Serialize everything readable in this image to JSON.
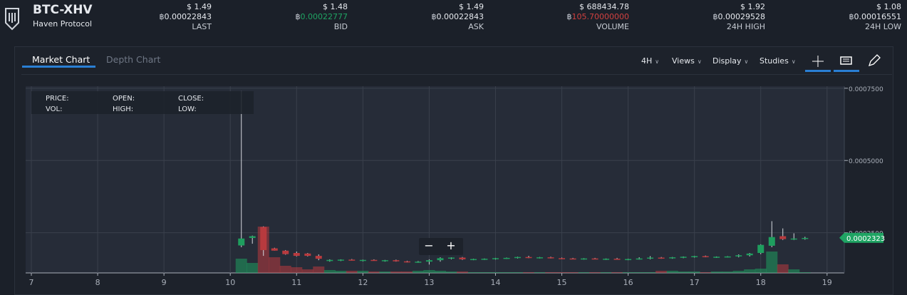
{
  "header": {
    "pair": "BTC-XHV",
    "name": "Haven Protocol",
    "currency_symbol": "฿",
    "stats": [
      {
        "usd": "$ 1.49",
        "btc": "0.00022843",
        "label": "LAST"
      },
      {
        "usd": "$ 1.48",
        "btc": "0.00022777",
        "label": "BID",
        "color": "#1fa463"
      },
      {
        "usd": "$ 1.49",
        "btc": "0.00022843",
        "label": "ASK"
      },
      {
        "usd": "$ 688434.78",
        "btc": "105.70000000",
        "label": "VOLUME",
        "color": "#d0403f"
      },
      {
        "usd": "$ 1.92",
        "btc": "0.00029528",
        "label": "24H HIGH"
      },
      {
        "usd": "$ 1.08",
        "btc": "0.00016551",
        "label": "24H LOW"
      }
    ]
  },
  "toolbar": {
    "tabs": [
      "Market Chart",
      "Depth Chart"
    ],
    "menus": [
      "4H",
      "Views",
      "Display",
      "Studies"
    ]
  },
  "info_box": {
    "labels": [
      "PRICE:",
      "OPEN:",
      "CLOSE:",
      "VOL:",
      "HIGH:",
      "LOW:"
    ]
  },
  "zoom": [
    "−",
    "+"
  ],
  "chart_data": {
    "type": "candlestick",
    "up_color": "#1e9e5e",
    "down_color": "#b83a3e",
    "grid": true,
    "x": [
      10.167,
      10.333,
      10.5,
      10.667,
      10.833,
      11,
      11.167,
      11.333,
      11.5,
      11.667,
      11.833,
      12,
      12.167,
      12.333,
      12.5,
      12.667,
      12.833,
      13,
      13.167,
      13.333,
      13.5,
      13.667,
      13.833,
      14,
      14.167,
      14.333,
      14.5,
      14.667,
      14.833,
      15,
      15.167,
      15.333,
      15.5,
      15.667,
      15.833,
      16,
      16.167,
      16.333,
      16.5,
      16.667,
      16.833,
      17,
      17.167,
      17.333,
      17.5,
      17.667,
      17.833,
      18,
      18.167,
      18.333,
      18.5,
      18.667
    ],
    "open": [
      0.000206,
      0.000232,
      0.00027,
      0.000196,
      0.000188,
      0.00018,
      0.000178,
      0.00017,
      0.000152,
      0.000155,
      0.000157,
      0.000154,
      0.000156,
      0.000154,
      0.000155,
      0.000151,
      0.000149,
      0.00015,
      0.000155,
      0.000162,
      0.000164,
      0.000158,
      0.000159,
      0.00016,
      0.000162,
      0.000163,
      0.000166,
      0.000164,
      0.000165,
      0.000162,
      0.000161,
      0.00016,
      0.000161,
      0.000159,
      0.00016,
      0.000158,
      0.000159,
      0.000161,
      0.000164,
      0.000163,
      0.000165,
      0.000167,
      0.000169,
      0.000166,
      0.000167,
      0.000168,
      0.000172,
      0.00018,
      0.000205,
      0.000238,
      0.000229,
      0.00023
    ],
    "high": [
      0.00074,
      0.00024,
      0.000272,
      0.000198,
      0.00019,
      0.000185,
      0.00018,
      0.000175,
      0.000158,
      0.000158,
      0.000159,
      0.000157,
      0.000158,
      0.000156,
      0.000157,
      0.000153,
      0.000152,
      0.000158,
      0.000165,
      0.000165,
      0.000166,
      0.00016,
      0.000161,
      0.000163,
      0.000164,
      0.000167,
      0.00017,
      0.000166,
      0.000167,
      0.000164,
      0.000163,
      0.000162,
      0.000163,
      0.000161,
      0.000163,
      0.00016,
      0.000165,
      0.000169,
      0.000166,
      0.000166,
      0.000168,
      0.00017,
      0.000171,
      0.000168,
      0.000169,
      0.000175,
      0.00018,
      0.00021,
      0.00029,
      0.000265,
      0.000248,
      0.000236
    ],
    "low": [
      0.0002,
      0.000212,
      0.00017,
      0.000188,
      0.000174,
      0.000168,
      0.000168,
      0.000155,
      0.00015,
      0.000152,
      0.000154,
      0.000151,
      0.000153,
      0.00015,
      0.00015,
      0.000147,
      0.000146,
      0.00014,
      0.00015,
      0.000158,
      0.000156,
      0.000155,
      0.000156,
      0.000157,
      0.000159,
      0.000161,
      0.000162,
      0.000161,
      0.000161,
      0.000159,
      0.000158,
      0.000157,
      0.000158,
      0.000156,
      0.000157,
      0.000155,
      0.000157,
      0.000158,
      0.00016,
      0.00016,
      0.000162,
      0.000164,
      0.000165,
      0.000163,
      0.000164,
      0.000165,
      0.000168,
      0.000176,
      0.0002,
      0.000225,
      0.000225,
      0.000226
    ],
    "close": [
      0.00023,
      0.000238,
      0.00019,
      0.000188,
      0.000176,
      0.00017,
      0.00017,
      0.00016,
      0.000156,
      0.000157,
      0.000155,
      0.000156,
      0.000154,
      0.000155,
      0.000151,
      0.000149,
      0.00015,
      0.000155,
      0.000162,
      0.000164,
      0.000158,
      0.000159,
      0.00016,
      0.000162,
      0.000163,
      0.000166,
      0.000164,
      0.000165,
      0.000162,
      0.000161,
      0.00016,
      0.000161,
      0.000159,
      0.00016,
      0.000158,
      0.000159,
      0.000161,
      0.000164,
      0.000163,
      0.000165,
      0.000167,
      0.000169,
      0.000166,
      0.000167,
      0.000168,
      0.000172,
      0.000178,
      0.000208,
      0.000235,
      0.000228,
      0.00023,
      0.000232
    ],
    "volume": [
      20,
      14,
      65,
      22,
      10,
      8,
      5,
      9,
      4,
      3,
      3,
      3,
      2,
      2,
      2,
      2,
      3,
      4,
      3,
      2,
      2,
      1,
      1,
      1,
      1,
      1,
      1,
      1,
      1,
      1,
      1,
      1,
      1,
      1,
      1,
      1,
      1,
      1,
      3,
      3,
      2,
      2,
      1,
      2,
      2,
      3,
      5,
      6,
      30,
      12,
      5,
      1
    ],
    "xlim": [
      6.914,
      19.26
    ],
    "xticks": [
      7,
      8,
      9,
      10,
      11,
      12,
      13,
      14,
      15,
      16,
      17,
      18,
      19
    ],
    "ylim": [
      0.000111,
      0.000757
    ],
    "yticks": [
      {
        "value": 0.00025,
        "label": "0.0002500"
      },
      {
        "value": 0.0005,
        "label": "0.0005000"
      },
      {
        "value": 0.00075,
        "label": "0.0007500"
      }
    ],
    "last_price": 0.0002323,
    "last_color": "#1fa463"
  }
}
